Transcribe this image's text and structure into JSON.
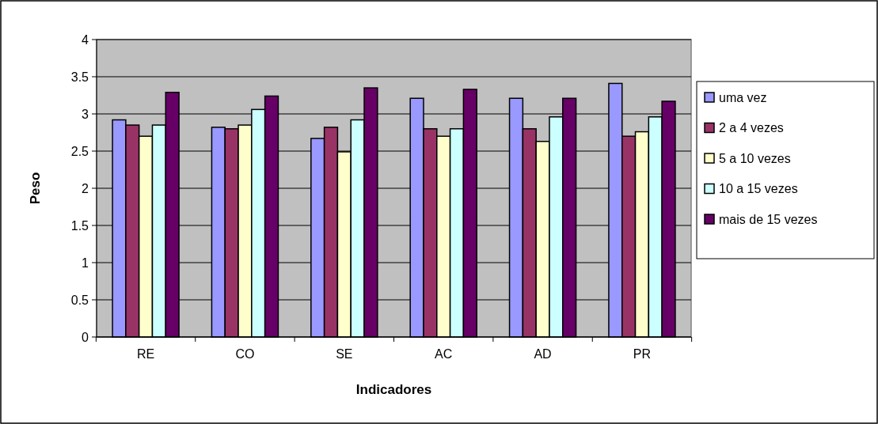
{
  "chart_data": {
    "type": "bar",
    "xlabel": "Indicadores",
    "ylabel": "Peso",
    "categories": [
      "RE",
      "CO",
      "SE",
      "AC",
      "AD",
      "PR"
    ],
    "series": [
      {
        "name": "uma vez",
        "color": "#9999ff",
        "values": [
          2.92,
          2.82,
          2.67,
          3.21,
          3.21,
          3.41
        ]
      },
      {
        "name": "2 a 4 vezes",
        "color": "#993366",
        "values": [
          2.85,
          2.8,
          2.82,
          2.8,
          2.8,
          2.7
        ]
      },
      {
        "name": "5 a 10 vezes",
        "color": "#ffffcc",
        "values": [
          2.7,
          2.85,
          2.49,
          2.7,
          2.63,
          2.76
        ]
      },
      {
        "name": "10 a 15 vezes",
        "color": "#ccffff",
        "values": [
          2.85,
          3.06,
          2.92,
          2.8,
          2.96,
          2.96
        ]
      },
      {
        "name": "mais de 15 vezes",
        "color": "#660066",
        "values": [
          3.29,
          3.24,
          3.35,
          3.33,
          3.21,
          3.17
        ]
      }
    ],
    "ylim": [
      0,
      4
    ],
    "yticks": [
      0,
      0.5,
      1,
      1.5,
      2,
      2.5,
      3,
      3.5,
      4
    ],
    "grid": "y",
    "legend": "right"
  }
}
